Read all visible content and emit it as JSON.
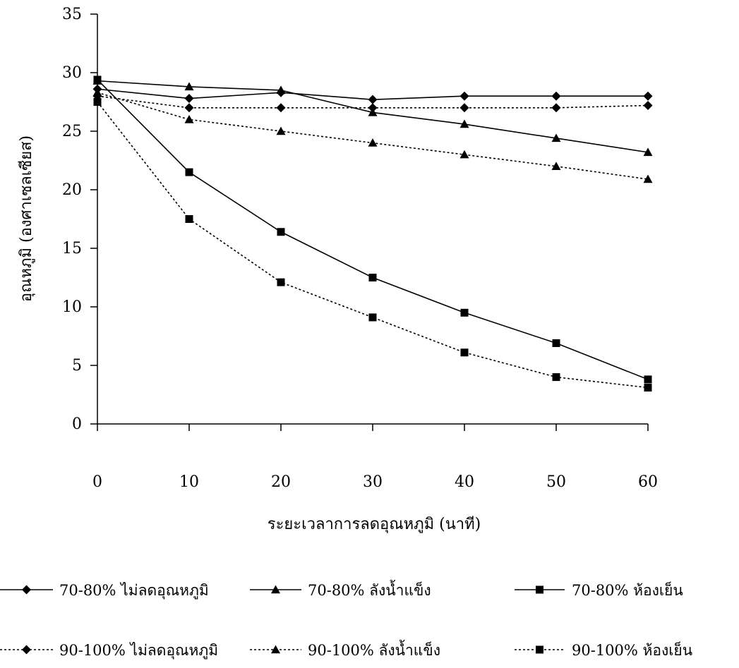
{
  "chart_data": {
    "type": "line",
    "title": "",
    "xlabel": "ระยะเวลาการลดอุณหภูมิ (นาที)",
    "ylabel": "อุณหภูมิ (องศาเซลเซียส)",
    "x": [
      0,
      10,
      20,
      30,
      40,
      50,
      60
    ],
    "x_ticks": [
      "0",
      "10",
      "20",
      "30",
      "40",
      "50",
      "60"
    ],
    "ylim": [
      0,
      35
    ],
    "y_ticks": [
      "0",
      "5",
      "10",
      "15",
      "20",
      "25",
      "30",
      "35"
    ],
    "grid": false,
    "legend_position": "bottom",
    "series": [
      {
        "name": "70-80% ไม่ลดอุณหภูมิ",
        "marker": "diamond",
        "line": "solid",
        "values": [
          28.6,
          27.8,
          28.3,
          27.7,
          28.0,
          28.0,
          28.0
        ]
      },
      {
        "name": "70-80% ลังน้ำแข็ง",
        "marker": "triangle",
        "line": "solid",
        "values": [
          29.3,
          28.8,
          28.5,
          26.6,
          25.6,
          24.4,
          23.2
        ]
      },
      {
        "name": "70-80% ห้องเย็น",
        "marker": "square",
        "line": "solid",
        "values": [
          29.4,
          21.5,
          16.4,
          12.5,
          9.5,
          6.9,
          3.8
        ]
      },
      {
        "name": "90-100% ไม่ลดอุณหภูมิ",
        "marker": "diamond",
        "line": "dotted",
        "values": [
          28.0,
          27.0,
          27.0,
          27.0,
          27.0,
          27.0,
          27.2
        ]
      },
      {
        "name": "90-100% ลังน้ำแข็ง",
        "marker": "triangle",
        "line": "dotted",
        "values": [
          28.3,
          26.0,
          25.0,
          24.0,
          23.0,
          22.0,
          20.9
        ]
      },
      {
        "name": "90-100% ห้องเย็น",
        "marker": "square",
        "line": "dotted",
        "values": [
          27.5,
          17.5,
          12.1,
          9.1,
          6.1,
          4.0,
          3.1
        ]
      }
    ]
  }
}
